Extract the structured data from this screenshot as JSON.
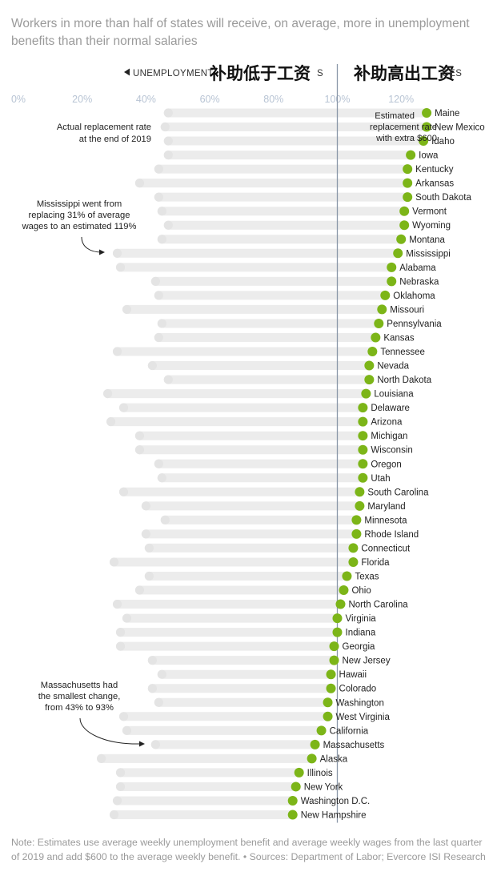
{
  "title": "Workers in more than half of states will receive, on average, more in unemployment benefits than their normal salaries",
  "header": {
    "left_small": "UNEMPLOYMENT",
    "left_overlay": "补助低于工资",
    "left_small_tail": "S",
    "right_overlay": "补助高出工资",
    "right_small_tail": "GES"
  },
  "annotations": {
    "actual": [
      "Actual replacement rate",
      "at the end of 2019"
    ],
    "estimated": [
      "Estimated",
      "replacement rate",
      "with extra $600"
    ],
    "mississippi": [
      "Mississippi went from",
      "replacing 31% of average",
      "wages to an estimated 119%"
    ],
    "massachusetts": [
      "Massachusetts had",
      "the smallest change,",
      "from 43% to 93%"
    ]
  },
  "note": "Note: Estimates use average weekly unemployment benefit and average weekly wages from the last quarter of 2019 and add $600 to the average weekly benefit.  •  Sources: Department of Labor; Evercore ISI Research",
  "colors": {
    "accent": "#7cb518",
    "bar": "#ececec",
    "old_dot": "#e4e4e4",
    "axis_line": "#8a97a8",
    "tick": "#b8c4d4"
  },
  "chart_data": {
    "type": "dot-range",
    "unit": "%",
    "xlim": [
      0,
      130
    ],
    "ticks": [
      0,
      20,
      40,
      60,
      80,
      100,
      120
    ],
    "tick_labels": [
      "0%",
      "20%",
      "40%",
      "60%",
      "80%",
      "100%",
      "120%"
    ],
    "series": [
      {
        "name": "Actual replacement rate at the end of 2019",
        "key": "actual"
      },
      {
        "name": "Estimated replacement rate with extra $600",
        "key": "estimated"
      }
    ],
    "states": [
      "Maine",
      "New Mexico",
      "Idaho",
      "Iowa",
      "Kentucky",
      "Arkansas",
      "South Dakota",
      "Vermont",
      "Wyoming",
      "Montana",
      "Mississippi",
      "Alabama",
      "Nebraska",
      "Oklahoma",
      "Missouri",
      "Pennsylvania",
      "Kansas",
      "Tennessee",
      "Nevada",
      "North Dakota",
      "Louisiana",
      "Delaware",
      "Arizona",
      "Michigan",
      "Wisconsin",
      "Oregon",
      "Utah",
      "South Carolina",
      "Maryland",
      "Minnesota",
      "Rhode Island",
      "Connecticut",
      "Florida",
      "Texas",
      "Ohio",
      "North Carolina",
      "Virginia",
      "Indiana",
      "Georgia",
      "New Jersey",
      "Hawaii",
      "Colorado",
      "Washington",
      "West Virginia",
      "California",
      "Massachusetts",
      "Alaska",
      "Illinois",
      "New York",
      "Washington D.C.",
      "New Hampshire"
    ],
    "actual": [
      47,
      46,
      47,
      47,
      44,
      38,
      44,
      45,
      47,
      45,
      31,
      32,
      43,
      44,
      34,
      45,
      44,
      31,
      42,
      47,
      28,
      33,
      29,
      38,
      38,
      44,
      45,
      33,
      40,
      46,
      40,
      41,
      30,
      41,
      38,
      31,
      34,
      32,
      32,
      42,
      45,
      42,
      44,
      33,
      34,
      43,
      26,
      32,
      32,
      31,
      30
    ],
    "estimated": [
      128,
      128,
      127,
      123,
      122,
      122,
      122,
      121,
      121,
      120,
      119,
      117,
      117,
      115,
      114,
      113,
      112,
      111,
      110,
      110,
      109,
      108,
      108,
      108,
      108,
      108,
      108,
      107,
      107,
      106,
      106,
      105,
      105,
      103,
      102,
      101,
      100,
      100,
      99,
      99,
      98,
      98,
      97,
      97,
      95,
      93,
      92,
      88,
      87,
      86,
      86
    ]
  }
}
